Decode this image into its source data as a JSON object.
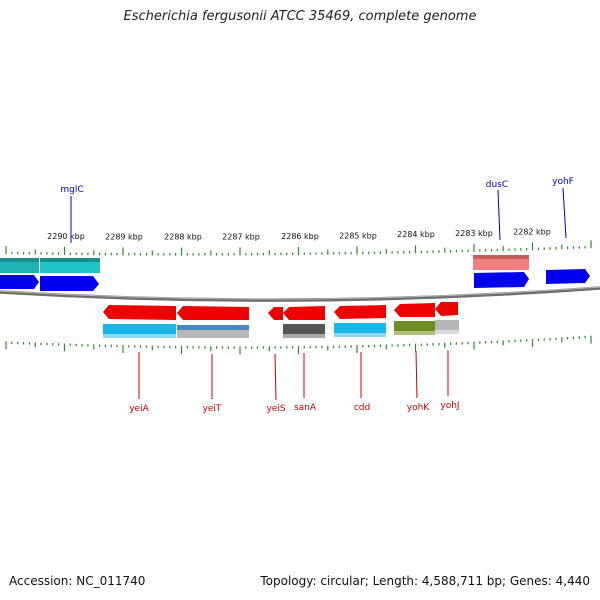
{
  "title": "Escherichia fergusonii ATCC 35469, complete genome",
  "footer": {
    "accession": "Accession: NC_011740",
    "summary": "Topology: circular; Length: 4,588,711 bp; Genes: 4,440"
  },
  "colors": {
    "tick": "#2e8b2e",
    "backbone": "#6f6f6f",
    "forward_label": "#0000bb",
    "reverse_label": "#cc0000"
  },
  "scale_labels": [
    "2290 kbp",
    "2289 kbp",
    "2288 kbp",
    "2287 kbp",
    "2286 kbp",
    "2285 kbp",
    "2284 kbp",
    "2283 kbp",
    "2282 kbp"
  ],
  "forward_gene_labels": [
    "mglC",
    "dusC",
    "yohF"
  ],
  "reverse_gene_labels": [
    "yeiA",
    "yeiT",
    "yeiS",
    "sanA",
    "cdd",
    "yohK",
    "yohJ"
  ]
}
